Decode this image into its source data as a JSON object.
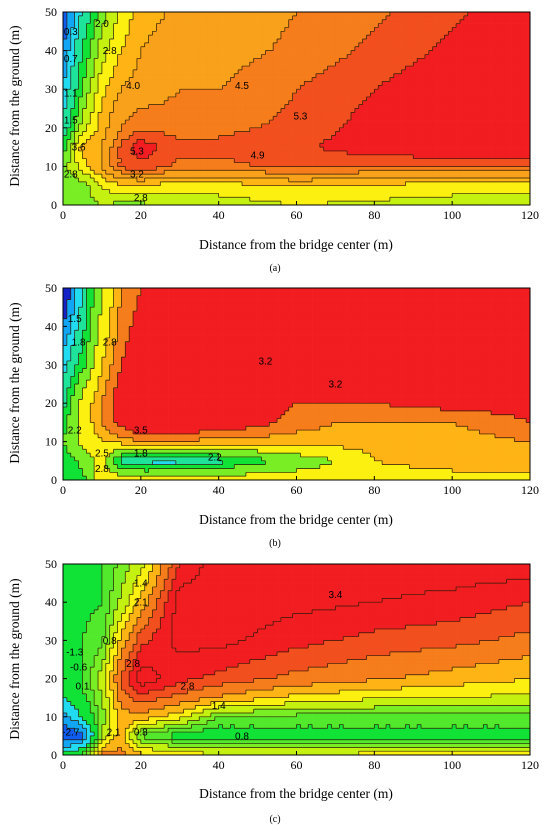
{
  "colors": {
    "red": "#f11d20",
    "orange": "#f67d1b",
    "light_orange": "#ffb415",
    "yellow": "#fbf00f",
    "yellow_green": "#c4f10f",
    "light_green": "#79ee24",
    "green": "#10e335",
    "teal": "#1ee39b",
    "cyan": "#21dcf1",
    "sky": "#11a6f5",
    "blue": "#0f5cf0",
    "navy": "#1522c8",
    "contour_line": "#2b1a06"
  },
  "chart_data": [
    {
      "type": "contour",
      "panel_label": "(a)",
      "xlabel": "Distance from the bridge center (m)",
      "ylabel": "Distance from the ground (m)",
      "xlim": [
        0,
        120
      ],
      "ylim": [
        0,
        50
      ],
      "xticks": [
        "0",
        "20",
        "40",
        "60",
        "80",
        "100",
        "120"
      ],
      "yticks": [
        "0",
        "10",
        "20",
        "30",
        "40",
        "50"
      ],
      "grid": false,
      "contour_labels": [
        {
          "text": "0.3",
          "x": 2,
          "y": 45
        },
        {
          "text": "0.7",
          "x": 2,
          "y": 38
        },
        {
          "text": "1.1",
          "x": 2,
          "y": 29
        },
        {
          "text": "1.5",
          "x": 2,
          "y": 22
        },
        {
          "text": "2.0",
          "x": 10,
          "y": 47
        },
        {
          "text": "2.8",
          "x": 12,
          "y": 40
        },
        {
          "text": "4.0",
          "x": 18,
          "y": 31
        },
        {
          "text": "4.5",
          "x": 46,
          "y": 31
        },
        {
          "text": "5.3",
          "x": 61,
          "y": 23
        },
        {
          "text": "5.3",
          "x": 19,
          "y": 14
        },
        {
          "text": "4.9",
          "x": 50,
          "y": 13
        },
        {
          "text": "3.6",
          "x": 4,
          "y": 15
        },
        {
          "text": "2.8",
          "x": 2,
          "y": 8
        },
        {
          "text": "3.2",
          "x": 19,
          "y": 8
        },
        {
          "text": "2.8",
          "x": 20,
          "y": 2
        }
      ],
      "field": {
        "x": [
          0,
          5,
          10,
          15,
          20,
          30,
          40,
          60,
          80,
          100,
          120
        ],
        "y": [
          0,
          5,
          10,
          15,
          20,
          30,
          40,
          50
        ],
        "z": [
          [
            2.6,
            2.4,
            2.9,
            2.6,
            2.7,
            2.9,
            3.0,
            3.2,
            3.1,
            3.0,
            2.9
          ],
          [
            2.5,
            2.6,
            3.3,
            3.5,
            3.5,
            3.4,
            3.4,
            3.6,
            3.5,
            3.4,
            3.4
          ],
          [
            2.6,
            3.4,
            4.0,
            5.0,
            5.2,
            4.8,
            4.8,
            5.0,
            4.9,
            4.8,
            4.8
          ],
          [
            2.2,
            3.8,
            4.0,
            5.0,
            5.6,
            5.0,
            5.0,
            5.2,
            5.6,
            5.9,
            5.9
          ],
          [
            1.6,
            3.0,
            3.8,
            4.5,
            4.8,
            4.7,
            4.8,
            5.0,
            5.5,
            5.9,
            6.0
          ],
          [
            1.1,
            2.4,
            3.5,
            4.0,
            4.2,
            4.5,
            4.5,
            4.9,
            5.3,
            5.7,
            6.0
          ],
          [
            0.7,
            2.0,
            3.0,
            3.6,
            4.0,
            4.3,
            4.3,
            4.6,
            5.0,
            5.4,
            5.9
          ],
          [
            0.3,
            1.6,
            2.6,
            3.3,
            3.8,
            4.1,
            4.2,
            4.5,
            4.8,
            5.2,
            5.6
          ]
        ],
        "levels": [
          0.3,
          0.7,
          1.1,
          1.5,
          2.0,
          2.4,
          2.8,
          3.2,
          3.6,
          4.0,
          4.5,
          4.9,
          5.3
        ],
        "colors": [
          "#1522c8",
          "#0f5cf0",
          "#11a6f5",
          "#21dcf1",
          "#1ee39b",
          "#10e335",
          "#79ee24",
          "#c4f10f",
          "#fbf00f",
          "#ffb415",
          "#f9a11a",
          "#f67d1b",
          "#f24f1e",
          "#f11d20"
        ]
      }
    },
    {
      "type": "contour",
      "panel_label": "(b)",
      "xlabel": "Distance from the bridge center (m)",
      "ylabel": "Distance from the ground (m)",
      "xlim": [
        0,
        120
      ],
      "ylim": [
        0,
        50
      ],
      "xticks": [
        "0",
        "20",
        "40",
        "60",
        "80",
        "100",
        "120"
      ],
      "yticks": [
        "0",
        "10",
        "20",
        "30",
        "40",
        "50"
      ],
      "grid": false,
      "contour_labels": [
        {
          "text": "1.5",
          "x": 3,
          "y": 42
        },
        {
          "text": "1.8",
          "x": 4,
          "y": 36
        },
        {
          "text": "2.8",
          "x": 12,
          "y": 36
        },
        {
          "text": "3.2",
          "x": 52,
          "y": 31
        },
        {
          "text": "3.2",
          "x": 70,
          "y": 25
        },
        {
          "text": "3.5",
          "x": 20,
          "y": 13
        },
        {
          "text": "2.2",
          "x": 3,
          "y": 13
        },
        {
          "text": "2.5",
          "x": 10,
          "y": 7
        },
        {
          "text": "1.8",
          "x": 20,
          "y": 7
        },
        {
          "text": "2.2",
          "x": 39,
          "y": 6
        },
        {
          "text": "2.8",
          "x": 10,
          "y": 3
        }
      ],
      "field": {
        "x": [
          0,
          5,
          10,
          15,
          20,
          30,
          40,
          50,
          60,
          70,
          80,
          100,
          120
        ],
        "y": [
          0,
          5,
          10,
          15,
          20,
          25,
          30,
          40,
          50
        ],
        "z": [
          [
            2.0,
            2.1,
            2.7,
            2.7,
            2.7,
            2.7,
            2.7,
            2.7,
            2.7,
            2.7,
            2.7,
            2.7,
            2.7
          ],
          [
            2.0,
            2.3,
            2.6,
            1.9,
            1.7,
            1.7,
            1.9,
            2.1,
            2.3,
            2.5,
            2.8,
            2.9,
            2.9
          ],
          [
            2.2,
            2.6,
            2.8,
            2.9,
            3.0,
            3.0,
            2.9,
            2.9,
            2.9,
            2.9,
            2.9,
            2.9,
            3.0
          ],
          [
            2.1,
            2.6,
            3.0,
            3.3,
            3.5,
            3.5,
            3.4,
            3.3,
            3.1,
            3.0,
            3.0,
            3.0,
            3.2
          ],
          [
            1.9,
            2.6,
            3.0,
            3.4,
            3.7,
            3.5,
            3.4,
            3.3,
            3.2,
            3.2,
            3.2,
            3.3,
            3.3
          ],
          [
            1.8,
            2.4,
            2.9,
            3.3,
            3.4,
            3.4,
            3.4,
            3.4,
            3.3,
            3.3,
            3.3,
            3.3,
            3.4
          ],
          [
            1.7,
            2.1,
            2.8,
            3.2,
            3.4,
            3.4,
            3.4,
            3.3,
            3.4,
            3.4,
            3.4,
            3.4,
            3.5
          ],
          [
            1.5,
            1.9,
            2.6,
            3.1,
            3.3,
            3.4,
            3.4,
            3.4,
            3.4,
            3.4,
            3.4,
            3.4,
            3.4
          ],
          [
            1.3,
            1.8,
            2.5,
            3.0,
            3.2,
            3.3,
            3.3,
            3.3,
            3.3,
            3.3,
            3.3,
            3.3,
            3.3
          ]
        ],
        "levels": [
          1.5,
          1.65,
          1.8,
          2.0,
          2.2,
          2.5,
          2.8,
          3.0,
          3.2
        ],
        "colors": [
          "#1522c8",
          "#11a6f5",
          "#21dcf1",
          "#1ee39b",
          "#10e335",
          "#79ee24",
          "#fbf00f",
          "#ffb415",
          "#f67d1b",
          "#f11d20"
        ]
      }
    },
    {
      "type": "contour",
      "panel_label": "(c)",
      "xlabel": "Distance from the bridge center (m)",
      "ylabel": "Distance from the ground (m)",
      "xlim": [
        0,
        120
      ],
      "ylim": [
        0,
        50
      ],
      "xticks": [
        "0",
        "20",
        "40",
        "60",
        "80",
        "100",
        "120"
      ],
      "yticks": [
        "0",
        "10",
        "20",
        "30",
        "40",
        "50"
      ],
      "grid": false,
      "contour_labels": [
        {
          "text": "1.4",
          "x": 20,
          "y": 45
        },
        {
          "text": "2.1",
          "x": 20,
          "y": 40
        },
        {
          "text": "3.4",
          "x": 70,
          "y": 42
        },
        {
          "text": "0.8",
          "x": 12,
          "y": 30
        },
        {
          "text": "-1.3",
          "x": 3,
          "y": 27
        },
        {
          "text": "-0.6",
          "x": 4,
          "y": 23
        },
        {
          "text": "0.1",
          "x": 5,
          "y": 18
        },
        {
          "text": "2.8",
          "x": 18,
          "y": 24
        },
        {
          "text": "2.8",
          "x": 32,
          "y": 18
        },
        {
          "text": "1.4",
          "x": 40,
          "y": 13
        },
        {
          "text": "0.8",
          "x": 46,
          "y": 5
        },
        {
          "text": "-2.7",
          "x": 2,
          "y": 6
        },
        {
          "text": "2.1",
          "x": 13,
          "y": 6
        },
        {
          "text": "0.8",
          "x": 20,
          "y": 6
        }
      ],
      "field": {
        "x": [
          0,
          5,
          10,
          15,
          20,
          30,
          40,
          60,
          80,
          100,
          120
        ],
        "y": [
          0,
          5,
          10,
          15,
          20,
          30,
          40,
          50
        ],
        "z": [
          [
            0.3,
            0.9,
            2.6,
            2.6,
            2.2,
            2.0,
            1.8,
            1.8,
            1.9,
            1.9,
            1.9
          ],
          [
            -2.0,
            -1.5,
            1.5,
            2.3,
            1.0,
            0.6,
            0.5,
            0.6,
            0.6,
            0.6,
            0.6
          ],
          [
            -1.0,
            0.2,
            1.2,
            2.3,
            2.3,
            1.9,
            1.1,
            1.0,
            1.0,
            1.0,
            1.0
          ],
          [
            0.0,
            0.7,
            1.4,
            2.6,
            3.0,
            2.7,
            2.4,
            2.0,
            1.8,
            1.7,
            1.7
          ],
          [
            0.4,
            0.8,
            1.6,
            2.9,
            3.6,
            3.2,
            3.0,
            2.7,
            2.5,
            2.3,
            2.1
          ],
          [
            0.5,
            0.8,
            1.0,
            2.2,
            3.0,
            3.5,
            3.5,
            3.2,
            3.0,
            2.9,
            2.7
          ],
          [
            0.5,
            0.7,
            0.8,
            1.5,
            2.2,
            3.6,
            3.6,
            3.5,
            3.4,
            3.3,
            3.1
          ],
          [
            0.4,
            0.6,
            0.8,
            1.2,
            1.6,
            3.1,
            3.6,
            3.6,
            3.6,
            3.6,
            3.6
          ]
        ],
        "levels": [
          -1.3,
          -0.6,
          0.1,
          0.8,
          1.1,
          1.4,
          1.75,
          2.1,
          2.45,
          2.8,
          3.1,
          3.4
        ],
        "colors": [
          "#0f5cf0",
          "#11a6f5",
          "#21dcf1",
          "#10e335",
          "#52e92c",
          "#79ee24",
          "#c4f10f",
          "#fbf00f",
          "#ffb415",
          "#f67d1b",
          "#f24f1e",
          "#f11d20",
          "#f11d20"
        ]
      }
    }
  ]
}
